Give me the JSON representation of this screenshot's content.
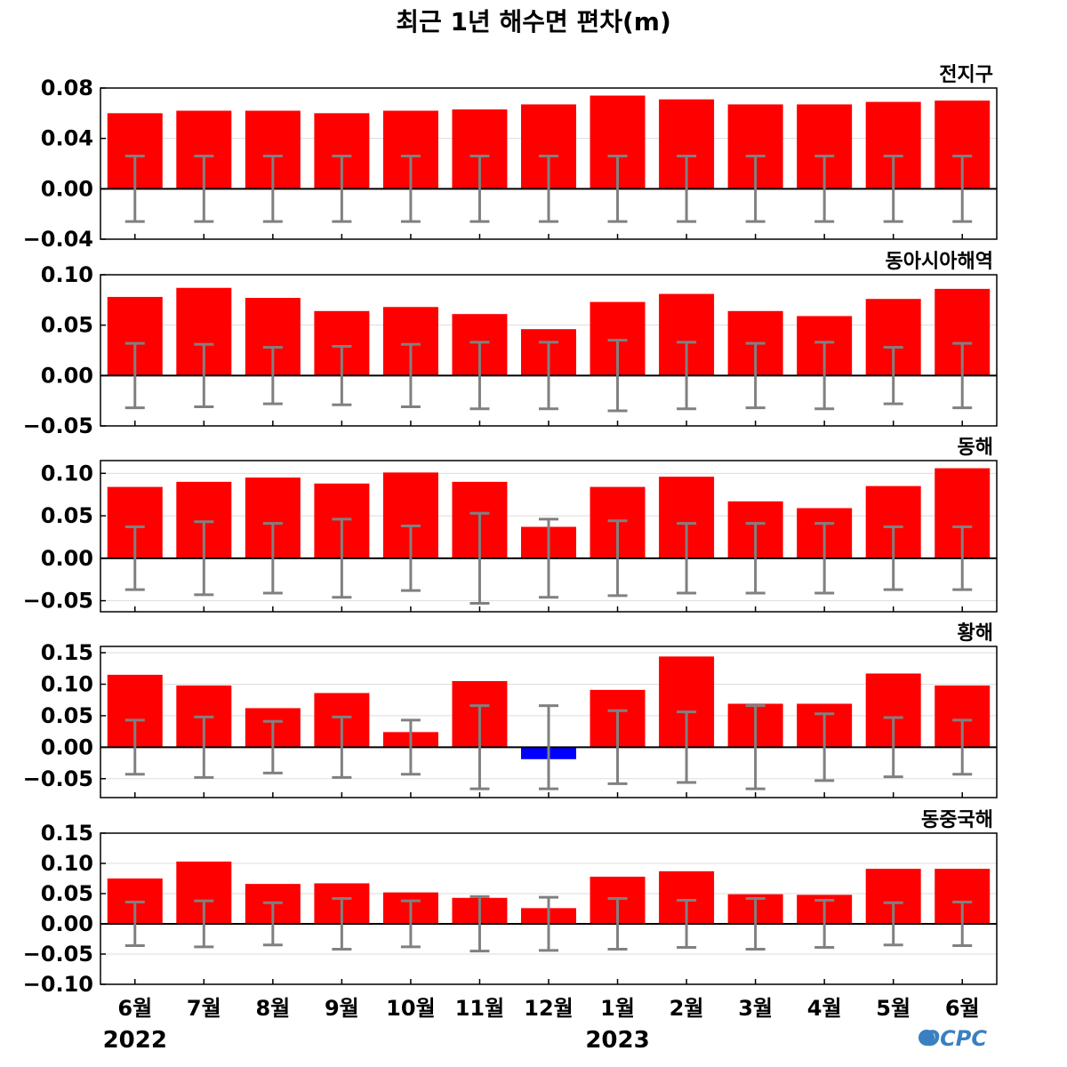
{
  "title": "최근 1년 해수면 편차(m)",
  "logo_text": "OCPC",
  "colors": {
    "positive": "#ff0000",
    "negative": "#0000ff",
    "errorbar": "#808080",
    "grid": "#dddddd",
    "logo": "#3a7fc1"
  },
  "chart_data": {
    "type": "bar",
    "categories": [
      "6월",
      "7월",
      "8월",
      "9월",
      "10월",
      "11월",
      "12월",
      "1월",
      "2월",
      "3월",
      "4월",
      "5월",
      "6월"
    ],
    "years": [
      {
        "label": "2022",
        "category_index": 0
      },
      {
        "label": "2023",
        "category_index": 7
      }
    ],
    "error_bars": true,
    "grid": "horizontal",
    "panels": [
      {
        "name": "전지구",
        "ylim": [
          -0.04,
          0.08
        ],
        "yticks": [
          -0.04,
          0.0,
          0.04,
          0.08
        ],
        "ytick_labels": [
          "−0.04",
          "0.00",
          "0.04",
          "0.08"
        ],
        "values": [
          0.06,
          0.062,
          0.062,
          0.06,
          0.062,
          0.063,
          0.067,
          0.074,
          0.071,
          0.067,
          0.067,
          0.069,
          0.07
        ],
        "error": [
          0.026,
          0.026,
          0.026,
          0.026,
          0.026,
          0.026,
          0.026,
          0.026,
          0.026,
          0.026,
          0.026,
          0.026,
          0.026
        ]
      },
      {
        "name": "동아시아해역",
        "ylim": [
          -0.05,
          0.1
        ],
        "yticks": [
          -0.05,
          0.0,
          0.05,
          0.1
        ],
        "ytick_labels": [
          "−0.05",
          "0.00",
          "0.05",
          "0.10"
        ],
        "values": [
          0.078,
          0.087,
          0.077,
          0.064,
          0.068,
          0.061,
          0.046,
          0.073,
          0.081,
          0.064,
          0.059,
          0.076,
          0.086
        ],
        "error": [
          0.032,
          0.031,
          0.028,
          0.029,
          0.031,
          0.033,
          0.033,
          0.035,
          0.033,
          0.032,
          0.033,
          0.028,
          0.032
        ]
      },
      {
        "name": "동해",
        "ylim": [
          -0.063,
          0.115
        ],
        "yticks": [
          -0.05,
          0.0,
          0.05,
          0.1
        ],
        "ytick_labels": [
          "−0.05",
          "0.00",
          "0.05",
          "0.10"
        ],
        "values": [
          0.084,
          0.09,
          0.095,
          0.088,
          0.101,
          0.09,
          0.037,
          0.084,
          0.096,
          0.067,
          0.059,
          0.085,
          0.106
        ],
        "error": [
          0.037,
          0.043,
          0.041,
          0.046,
          0.038,
          0.053,
          0.046,
          0.044,
          0.041,
          0.041,
          0.041,
          0.037,
          0.037
        ]
      },
      {
        "name": "황해",
        "ylim": [
          -0.08,
          0.16
        ],
        "yticks": [
          -0.05,
          0.0,
          0.05,
          0.1,
          0.15
        ],
        "ytick_labels": [
          "−0.05",
          "0.00",
          "0.05",
          "0.10",
          "0.15"
        ],
        "values": [
          0.115,
          0.098,
          0.062,
          0.086,
          0.024,
          0.105,
          -0.019,
          0.091,
          0.144,
          0.069,
          0.069,
          0.117,
          0.098
        ],
        "error": [
          0.043,
          0.048,
          0.041,
          0.048,
          0.043,
          0.066,
          0.066,
          0.058,
          0.056,
          0.066,
          0.053,
          0.047,
          0.043
        ]
      },
      {
        "name": "동중국해",
        "ylim": [
          -0.1,
          0.15
        ],
        "yticks": [
          -0.1,
          -0.05,
          0.0,
          0.05,
          0.1,
          0.15
        ],
        "ytick_labels": [
          "−0.10",
          "−0.05",
          "0.00",
          "0.05",
          "0.10",
          "0.15"
        ],
        "values": [
          0.075,
          0.103,
          0.066,
          0.067,
          0.052,
          0.043,
          0.026,
          0.078,
          0.087,
          0.049,
          0.048,
          0.091,
          0.091
        ],
        "error": [
          0.036,
          0.038,
          0.035,
          0.042,
          0.038,
          0.045,
          0.044,
          0.042,
          0.039,
          0.042,
          0.039,
          0.035,
          0.036
        ]
      }
    ]
  }
}
